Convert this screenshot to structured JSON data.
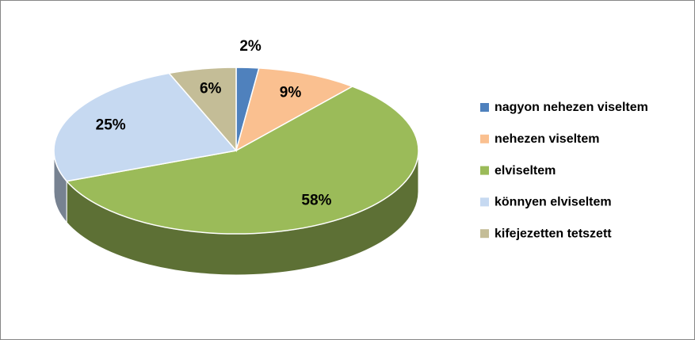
{
  "chart_data": {
    "type": "pie",
    "categories": [
      "nagyon nehezen viseltem",
      "nehezen viseltem",
      "elviseltem",
      "könnyen elviseltem",
      "kifejezetten tetszett"
    ],
    "values": [
      2,
      9,
      58,
      25,
      6
    ],
    "value_labels": [
      "2%",
      "9%",
      "58%",
      "25%",
      "6%"
    ],
    "colors": [
      "#4f81bd",
      "#fac090",
      "#9bbb59",
      "#c6d9f1",
      "#c4bd97"
    ],
    "legend": "right"
  }
}
